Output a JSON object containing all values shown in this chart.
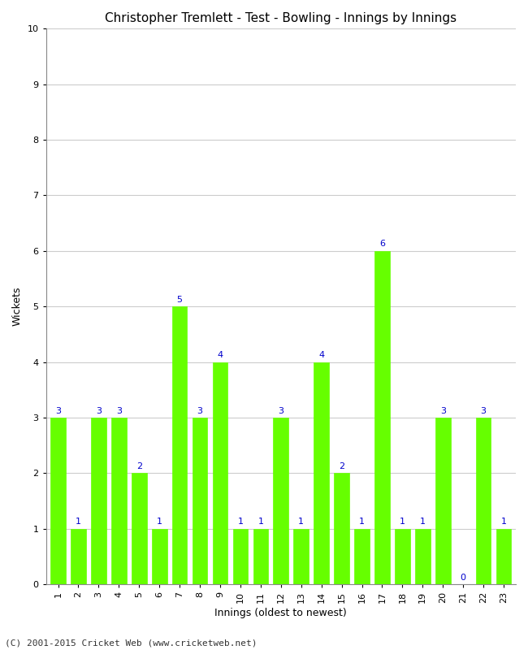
{
  "title": "Christopher Tremlett - Test - Bowling - Innings by Innings",
  "xlabel": "Innings (oldest to newest)",
  "ylabel": "Wickets",
  "categories": [
    "1",
    "2",
    "3",
    "4",
    "5",
    "6",
    "7",
    "8",
    "9",
    "10",
    "11",
    "12",
    "13",
    "14",
    "15",
    "16",
    "17",
    "18",
    "19",
    "20",
    "21",
    "22",
    "23"
  ],
  "values": [
    3,
    1,
    3,
    3,
    2,
    1,
    5,
    3,
    4,
    1,
    1,
    3,
    1,
    4,
    2,
    1,
    6,
    1,
    1,
    3,
    0,
    3,
    1
  ],
  "bar_color": "#66ff00",
  "label_color": "#0000cc",
  "background_color": "#ffffff",
  "ylim": [
    0,
    10
  ],
  "yticks": [
    0,
    1,
    2,
    3,
    4,
    5,
    6,
    7,
    8,
    9,
    10
  ],
  "grid_color": "#cccccc",
  "title_fontsize": 11,
  "axis_label_fontsize": 9,
  "tick_fontsize": 8,
  "annotation_fontsize": 8,
  "footer": "(C) 2001-2015 Cricket Web (www.cricketweb.net)"
}
